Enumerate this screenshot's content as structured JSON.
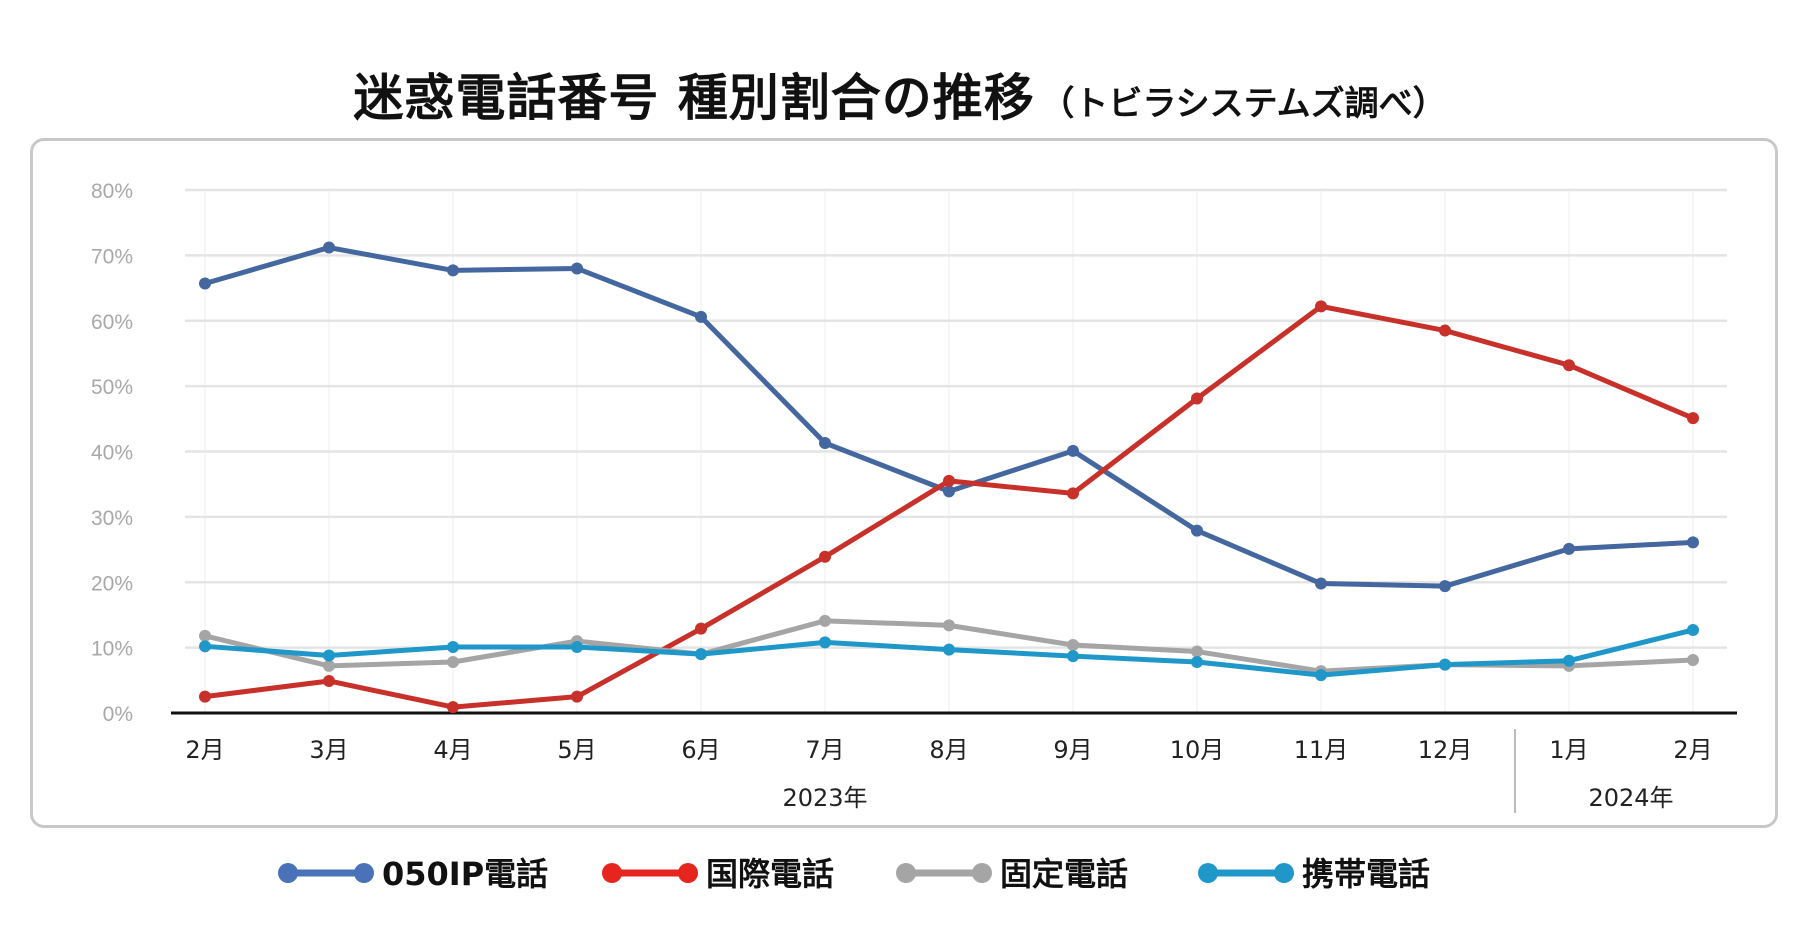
{
  "chart_data": {
    "type": "line",
    "title": "迷惑電話番号 種別割合の推移",
    "subtitle": "（トビラシステムズ調べ）",
    "categories": [
      "2月",
      "3月",
      "4月",
      "5月",
      "6月",
      "7月",
      "8月",
      "9月",
      "10月",
      "11月",
      "12月",
      "1月",
      "2月"
    ],
    "year_groups": [
      {
        "label": "2023年",
        "from": 0,
        "to": 10
      },
      {
        "label": "2024年",
        "from": 11,
        "to": 12
      }
    ],
    "ylim": [
      0,
      80
    ],
    "yticks": [
      0,
      10,
      20,
      30,
      40,
      50,
      60,
      70,
      80
    ],
    "ytick_labels": [
      "0%",
      "10%",
      "20%",
      "30%",
      "40%",
      "50%",
      "60%",
      "70%",
      "80%"
    ],
    "grid": true,
    "legend_position": "bottom",
    "series": [
      {
        "name": "050IP電話",
        "color": "#4467a0",
        "legend_color": "#4a72b8",
        "values": [
          65.7,
          71.2,
          67.7,
          68.0,
          60.6,
          41.3,
          33.9,
          40.1,
          27.9,
          19.8,
          19.4,
          25.1,
          26.1
        ]
      },
      {
        "name": "国際電話",
        "color": "#c8302a",
        "legend_color": "#e6261e",
        "values": [
          2.5,
          4.9,
          0.9,
          2.5,
          12.9,
          23.9,
          35.5,
          33.6,
          48.1,
          62.2,
          58.5,
          53.2,
          45.1
        ]
      },
      {
        "name": "固定電話",
        "color": "#a5a5a5",
        "legend_color": "#a5a5a5",
        "values": [
          11.8,
          7.2,
          7.8,
          11.0,
          9.0,
          14.1,
          13.4,
          10.4,
          9.4,
          6.4,
          7.4,
          7.2,
          8.1
        ]
      },
      {
        "name": "携帯電話",
        "color": "#1f97c9",
        "legend_color": "#1f97c9",
        "values": [
          10.2,
          8.8,
          10.1,
          10.1,
          9.0,
          10.8,
          9.7,
          8.7,
          7.8,
          5.8,
          7.4,
          8.0,
          12.7
        ]
      }
    ]
  }
}
